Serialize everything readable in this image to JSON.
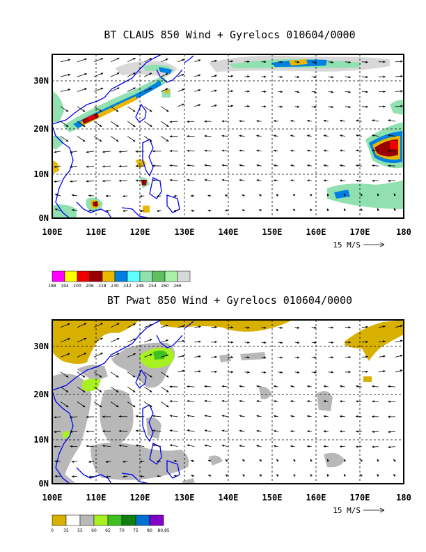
{
  "panels": [
    {
      "title": "BT CLAUS 850 Wind + Gyrelocs 010604/0000",
      "lat_labels": [
        "30N",
        "20N",
        "10N",
        "0N"
      ],
      "lon_labels": [
        "100E",
        "110E",
        "120E",
        "130E",
        "140E",
        "150E",
        "160E",
        "170E",
        "180"
      ],
      "vector_ref": "15 M/S",
      "legend_values": [
        "188",
        "194",
        "200",
        "206",
        "218",
        "230",
        "242",
        "248",
        "254",
        "260",
        "266"
      ],
      "legend_colors": [
        "#ff00ff",
        "#ffff00",
        "#ee0000",
        "#990000",
        "#e8b800",
        "#0080e0",
        "#60ffff",
        "#90e0b0",
        "#60c060",
        "#a8f0a8",
        "#d8d8d8"
      ]
    },
    {
      "title": "BT Pwat 850 Wind + Gyrelocs 010604/0000",
      "lat_labels": [
        "30N",
        "20N",
        "10N",
        "0N"
      ],
      "lon_labels": [
        "100E",
        "110E",
        "120E",
        "130E",
        "140E",
        "150E",
        "160E",
        "170E",
        "180"
      ],
      "vector_ref": "15 M/S",
      "legend_values": [
        "0",
        "35",
        "55",
        "60",
        "65",
        "70",
        "75",
        "80",
        "80.85"
      ],
      "legend_colors": [
        "#d8b000",
        "#ffffff",
        "#b8b8b8",
        "#a8f020",
        "#40c020",
        "#108010",
        "#0070d0",
        "#8000c8"
      ]
    }
  ]
}
